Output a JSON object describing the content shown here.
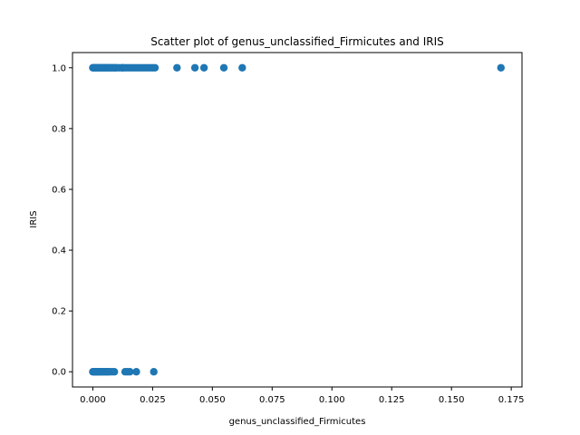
{
  "chart_data": {
    "type": "scatter",
    "title": "Scatter plot of genus_unclassified_Firmicutes and IRIS",
    "xlabel": "genus_unclassified_Firmicutes",
    "ylabel": "IRIS",
    "xlim": [
      -0.0085,
      0.1795
    ],
    "ylim": [
      -0.05,
      1.05
    ],
    "xticks": [
      0.0,
      0.025,
      0.05,
      0.075,
      0.1,
      0.125,
      0.15,
      0.175
    ],
    "xtick_labels": [
      "0.000",
      "0.025",
      "0.050",
      "0.075",
      "0.100",
      "0.125",
      "0.150",
      "0.175"
    ],
    "yticks": [
      0.0,
      0.2,
      0.4,
      0.6,
      0.8,
      1.0
    ],
    "ytick_labels": [
      "0.0",
      "0.2",
      "0.4",
      "0.6",
      "0.8",
      "1.0"
    ],
    "grid": false,
    "marker_color": "#1f77b4",
    "series": [
      {
        "x": [
          0.0,
          0.0003,
          0.0006,
          0.001,
          0.0013,
          0.0016,
          0.002,
          0.0024,
          0.0028,
          0.0032,
          0.0036,
          0.004,
          0.0044,
          0.0048,
          0.0052,
          0.0056,
          0.006,
          0.0065,
          0.007,
          0.0075,
          0.008,
          0.0085,
          0.009,
          0.0095,
          0.01,
          0.011,
          0.012,
          0.0125,
          0.013,
          0.014,
          0.015,
          0.016,
          0.017,
          0.018,
          0.019,
          0.02,
          0.021,
          0.022,
          0.023,
          0.024,
          0.025,
          0.026,
          0.0352,
          0.0427,
          0.0465,
          0.0548,
          0.0625,
          0.1707
        ],
        "y": [
          1,
          1,
          1,
          1,
          1,
          1,
          1,
          1,
          1,
          1,
          1,
          1,
          1,
          1,
          1,
          1,
          1,
          1,
          1,
          1,
          1,
          1,
          1,
          1,
          1,
          1,
          1,
          1,
          1,
          1,
          1,
          1,
          1,
          1,
          1,
          1,
          1,
          1,
          1,
          1,
          1,
          1,
          1,
          1,
          1,
          1,
          1,
          1
        ]
      },
      {
        "x": [
          0.0,
          0.0003,
          0.0006,
          0.001,
          0.0013,
          0.0016,
          0.002,
          0.0024,
          0.0028,
          0.0032,
          0.0036,
          0.004,
          0.0045,
          0.005,
          0.0055,
          0.006,
          0.0065,
          0.007,
          0.008,
          0.009,
          0.0135,
          0.0145,
          0.0155,
          0.0182,
          0.0255
        ],
        "y": [
          0,
          0,
          0,
          0,
          0,
          0,
          0,
          0,
          0,
          0,
          0,
          0,
          0,
          0,
          0,
          0,
          0,
          0,
          0,
          0,
          0,
          0,
          0,
          0,
          0
        ]
      }
    ]
  }
}
